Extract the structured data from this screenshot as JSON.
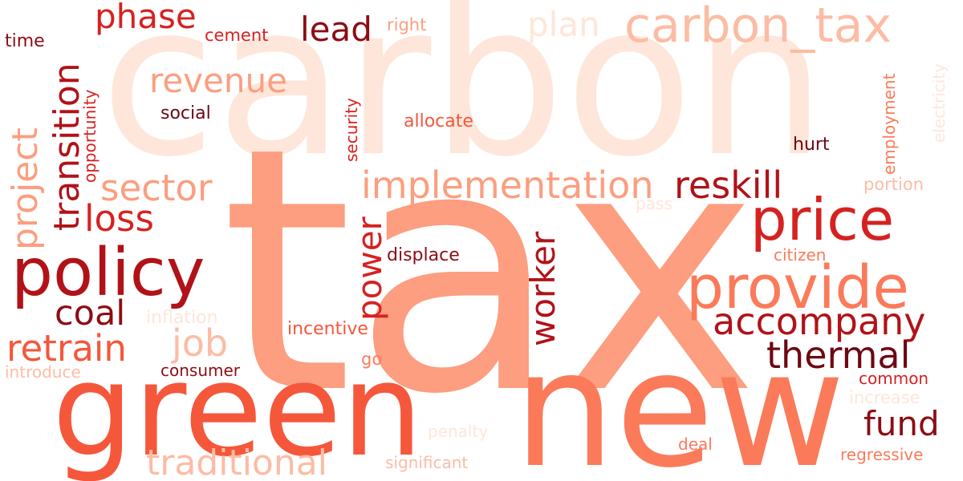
{
  "colors": {
    "background": "#ffffff",
    "palette": [
      "#fee6da",
      "#fcbca4",
      "#fc9e7f",
      "#fb7a5a",
      "#f5573b",
      "#d52221",
      "#b11218",
      "#8c0d15",
      "#6e0712"
    ]
  },
  "words": {
    "carbon": "carbon",
    "tax": "tax",
    "green": "green",
    "new": "new",
    "carbon_tax": "carbon_tax",
    "policy": "policy",
    "provide": "provide",
    "price": "price",
    "implementation": "implementation",
    "transition": "transition",
    "project": "project",
    "phase": "phase",
    "plan": "plan",
    "lead": "lead",
    "revenue": "revenue",
    "sector": "sector",
    "loss": "loss",
    "coal": "coal",
    "retrain": "retrain",
    "job": "job",
    "traditional": "traditional",
    "reskill": "reskill",
    "accompany": "accompany",
    "thermal": "thermal",
    "fund": "fund",
    "power": "power",
    "worker": "worker",
    "displace": "displace",
    "incentive": "incentive",
    "inflation": "inflation",
    "consumer": "consumer",
    "introduce": "introduce",
    "time": "time",
    "cement": "cement",
    "right": "right",
    "social": "social",
    "security": "security",
    "allocate": "allocate",
    "opportunity": "opportunity",
    "hurt": "hurt",
    "employment": "employment",
    "electricity": "electricity",
    "portion": "portion",
    "pass": "pass",
    "citizen": "citizen",
    "go": "go",
    "common": "common",
    "increase": "increase",
    "penalty": "penalty",
    "deal": "deal",
    "significant": "significant",
    "regressive": "regressive"
  }
}
